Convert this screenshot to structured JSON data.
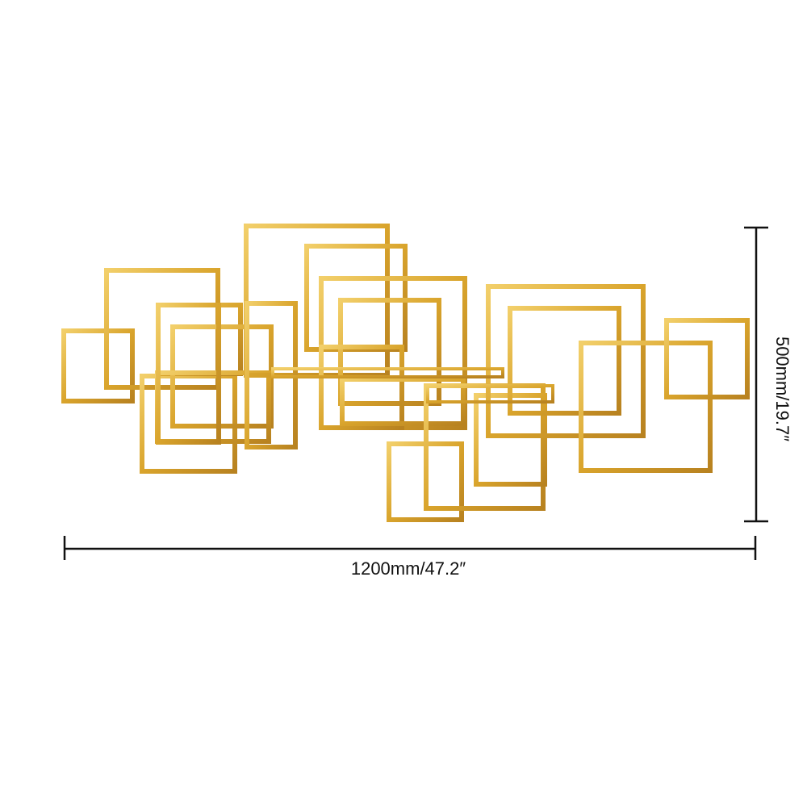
{
  "product": {
    "name": "gold-geometric-squares-metal-wall-decor",
    "frame_color": "#d9a42c",
    "frame_highlight": "#f2cf6a",
    "frame_shadow": "#a87618"
  },
  "dimensions": {
    "width_label": "1200mm/47.2″",
    "height_label": "500mm/19.7″",
    "line_color": "#111111"
  }
}
